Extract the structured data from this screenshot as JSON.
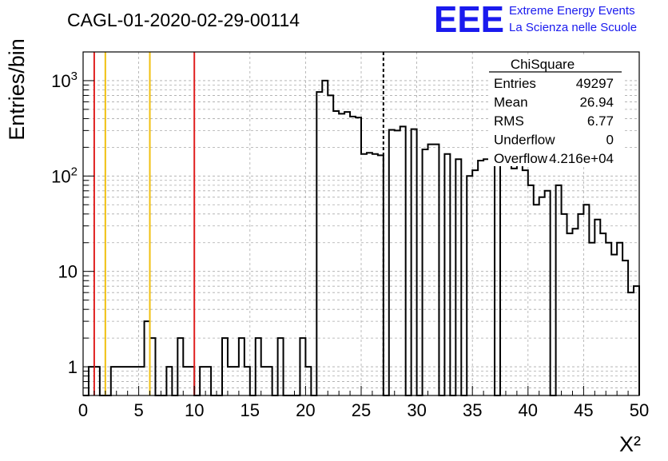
{
  "chart_data": {
    "type": "bar",
    "title": "CAGL-01-2020-02-29-00114",
    "xlabel": "Χ²",
    "ylabel": "Entries/bin",
    "xlim": [
      0,
      50
    ],
    "ylim": [
      0.5,
      2000
    ],
    "y_scale": "log",
    "grid": true,
    "x_ticks": [
      0,
      5,
      10,
      15,
      20,
      25,
      30,
      35,
      40,
      45,
      50
    ],
    "y_ticks": [
      {
        "value": 1,
        "label": "1"
      },
      {
        "value": 10,
        "label": "10"
      },
      {
        "value": 100,
        "label": "10",
        "sup": "2"
      },
      {
        "value": 1000,
        "label": "10",
        "sup": "3"
      }
    ],
    "bin_width": 0.5,
    "bins": [
      {
        "x": 0.5,
        "y": 1
      },
      {
        "x": 1.0,
        "y": 1
      },
      {
        "x": 2.5,
        "y": 1
      },
      {
        "x": 3.0,
        "y": 1
      },
      {
        "x": 3.5,
        "y": 1
      },
      {
        "x": 4.0,
        "y": 1
      },
      {
        "x": 4.5,
        "y": 1
      },
      {
        "x": 5.0,
        "y": 1
      },
      {
        "x": 5.5,
        "y": 3
      },
      {
        "x": 6.0,
        "y": 2
      },
      {
        "x": 7.5,
        "y": 1
      },
      {
        "x": 8.5,
        "y": 2
      },
      {
        "x": 9.0,
        "y": 1
      },
      {
        "x": 9.5,
        "y": 1
      },
      {
        "x": 10.5,
        "y": 1
      },
      {
        "x": 11.0,
        "y": 1
      },
      {
        "x": 12.5,
        "y": 2
      },
      {
        "x": 13.0,
        "y": 1
      },
      {
        "x": 13.5,
        "y": 1
      },
      {
        "x": 14.0,
        "y": 2
      },
      {
        "x": 14.5,
        "y": 1
      },
      {
        "x": 15.5,
        "y": 2
      },
      {
        "x": 16.0,
        "y": 1
      },
      {
        "x": 16.5,
        "y": 1
      },
      {
        "x": 17.5,
        "y": 2
      },
      {
        "x": 19.5,
        "y": 2
      },
      {
        "x": 20.0,
        "y": 1
      },
      {
        "x": 21.0,
        "y": 760
      },
      {
        "x": 21.5,
        "y": 1000
      },
      {
        "x": 22.0,
        "y": 700
      },
      {
        "x": 22.5,
        "y": 480
      },
      {
        "x": 23.0,
        "y": 450
      },
      {
        "x": 23.5,
        "y": 470
      },
      {
        "x": 24.0,
        "y": 420
      },
      {
        "x": 24.5,
        "y": 410
      },
      {
        "x": 25.0,
        "y": 170
      },
      {
        "x": 25.5,
        "y": 175
      },
      {
        "x": 26.0,
        "y": 170
      },
      {
        "x": 26.5,
        "y": 165
      },
      {
        "x": 27.5,
        "y": 305
      },
      {
        "x": 28.0,
        "y": 300
      },
      {
        "x": 28.5,
        "y": 330
      },
      {
        "x": 29.5,
        "y": 310
      },
      {
        "x": 30.5,
        "y": 190
      },
      {
        "x": 31.0,
        "y": 215
      },
      {
        "x": 31.5,
        "y": 215
      },
      {
        "x": 32.5,
        "y": 170
      },
      {
        "x": 33.5,
        "y": 150
      },
      {
        "x": 34.5,
        "y": 100
      },
      {
        "x": 35.0,
        "y": 115
      },
      {
        "x": 35.5,
        "y": 145
      },
      {
        "x": 36.0,
        "y": 150
      },
      {
        "x": 36.5,
        "y": 180
      },
      {
        "x": 37.5,
        "y": 145
      },
      {
        "x": 38.0,
        "y": 150
      },
      {
        "x": 38.5,
        "y": 120
      },
      {
        "x": 39.0,
        "y": 140
      },
      {
        "x": 39.5,
        "y": 115
      },
      {
        "x": 40.0,
        "y": 80
      },
      {
        "x": 40.5,
        "y": 50
      },
      {
        "x": 41.0,
        "y": 60
      },
      {
        "x": 41.5,
        "y": 70
      },
      {
        "x": 42.5,
        "y": 80
      },
      {
        "x": 43.0,
        "y": 40
      },
      {
        "x": 43.5,
        "y": 25
      },
      {
        "x": 44.0,
        "y": 28
      },
      {
        "x": 44.5,
        "y": 40
      },
      {
        "x": 45.0,
        "y": 50
      },
      {
        "x": 45.5,
        "y": 20
      },
      {
        "x": 46.0,
        "y": 35
      },
      {
        "x": 46.5,
        "y": 25
      },
      {
        "x": 47.0,
        "y": 20
      },
      {
        "x": 47.5,
        "y": 15
      },
      {
        "x": 48.0,
        "y": 20
      },
      {
        "x": 48.5,
        "y": 13
      },
      {
        "x": 49.0,
        "y": 6
      },
      {
        "x": 49.5,
        "y": 7
      }
    ],
    "vertical_lines": [
      {
        "x": 1.0,
        "color": "#e02020",
        "style": "solid"
      },
      {
        "x": 2.0,
        "color": "#f0c010",
        "style": "solid"
      },
      {
        "x": 6.0,
        "color": "#f0c010",
        "style": "solid"
      },
      {
        "x": 10.0,
        "color": "#e02020",
        "style": "solid"
      },
      {
        "x": 27.0,
        "color": "#000000",
        "style": "dashed"
      }
    ],
    "stats_box": {
      "title": "ChiSquare",
      "rows": [
        {
          "label": "Entries",
          "value": "49297"
        },
        {
          "label": "Mean",
          "value": "26.94"
        },
        {
          "label": "RMS",
          "value": "6.77"
        },
        {
          "label": "Underflow",
          "value": "0"
        },
        {
          "label": "Overflow",
          "value": "4.216e+04"
        }
      ]
    }
  },
  "logo": {
    "mark": "EEE",
    "line1": "Extreme Energy Events",
    "line2": "La Scienza nelle Scuole",
    "color": "#1a1aee"
  },
  "colors": {
    "histogram": "#000000",
    "grid": "#aaaaaa"
  }
}
